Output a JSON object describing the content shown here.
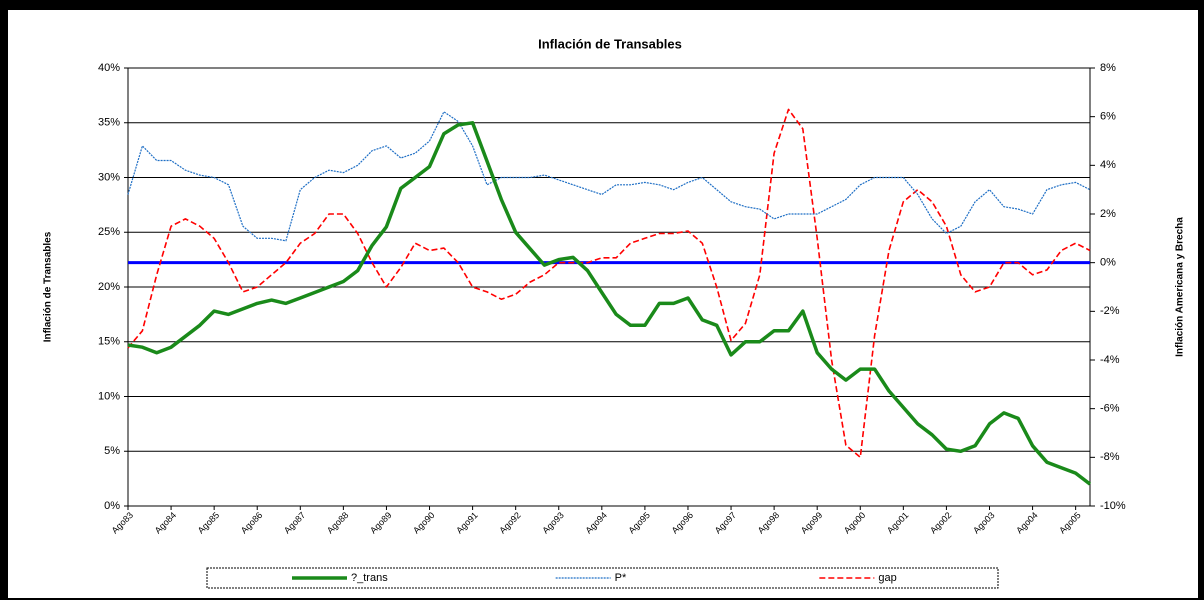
{
  "chart_data": {
    "type": "line",
    "title": "Inflación de Transables",
    "ylabel": "Inflación de Transables",
    "y2label": "Inflación Americana y Brecha",
    "categories": [
      "Ago83",
      null,
      null,
      "Ago84",
      null,
      null,
      "Ago85",
      null,
      null,
      "Ago86",
      null,
      null,
      "Ago87",
      null,
      null,
      "Ago88",
      null,
      null,
      "Ago89",
      null,
      null,
      "Ago90",
      null,
      null,
      "Ago91",
      null,
      null,
      "Ago92",
      null,
      null,
      "Ago93",
      null,
      null,
      "Ago94",
      null,
      null,
      "Ago95",
      null,
      null,
      "Ago96",
      null,
      null,
      "Ago97",
      null,
      null,
      "Ago98",
      null,
      null,
      "Ago99",
      null,
      null,
      "Ago00",
      null,
      null,
      "Ago01",
      null,
      null,
      "Ago02",
      null,
      null,
      "Ago03",
      null,
      null,
      "Ago04",
      null,
      null,
      "Ago05",
      null
    ],
    "series": [
      {
        "name": "?_trans",
        "color": "#1a8a1a",
        "style": "solid",
        "axis": "y",
        "values": [
          14.7,
          14.5,
          14.0,
          14.5,
          15.5,
          16.5,
          17.8,
          17.5,
          18.0,
          18.5,
          18.8,
          18.5,
          19.0,
          19.5,
          20.0,
          20.5,
          21.5,
          23.8,
          25.5,
          29.0,
          30.0,
          31.0,
          34.0,
          34.8,
          35.0,
          31.5,
          28.0,
          25.0,
          23.5,
          22.0,
          22.5,
          22.7,
          21.5,
          19.5,
          17.5,
          16.5,
          16.5,
          18.5,
          18.5,
          19.0,
          17.0,
          16.5,
          13.8,
          15.0,
          15.0,
          16.0,
          16.0,
          17.8,
          14.0,
          12.5,
          11.5,
          12.5,
          12.5,
          10.5,
          9.0,
          7.5,
          6.5,
          5.2,
          5.0,
          5.5,
          7.5,
          8.5,
          8.0,
          5.5,
          4.0,
          3.5,
          3.0,
          2.0
        ]
      },
      {
        "name": "P*",
        "color": "#1f6fc5",
        "style": "dotted",
        "axis": "y2",
        "values": [
          2.8,
          4.8,
          4.2,
          4.2,
          3.8,
          3.6,
          3.5,
          3.2,
          1.5,
          1.0,
          1.0,
          0.9,
          3.0,
          3.5,
          3.8,
          3.7,
          4.0,
          4.6,
          4.8,
          4.3,
          4.5,
          5.0,
          6.2,
          5.8,
          4.8,
          3.2,
          3.5,
          3.5,
          3.5,
          3.6,
          3.4,
          3.2,
          3.0,
          2.8,
          3.2,
          3.2,
          3.3,
          3.2,
          3.0,
          3.3,
          3.5,
          3.0,
          2.5,
          2.3,
          2.2,
          1.8,
          2.0,
          2.0,
          2.0,
          2.3,
          2.6,
          3.2,
          3.5,
          3.5,
          3.5,
          2.8,
          1.8,
          1.2,
          1.5,
          2.5,
          3.0,
          2.3,
          2.2,
          2.0,
          3.0,
          3.2,
          3.3,
          3.0
        ]
      },
      {
        "name": "gap",
        "color": "#ff0000",
        "style": "dashed",
        "axis": "y2",
        "values": [
          -3.5,
          -2.8,
          -0.5,
          1.5,
          1.8,
          1.5,
          1.0,
          0.0,
          -1.2,
          -1.0,
          -0.5,
          0.0,
          0.8,
          1.2,
          2.0,
          2.0,
          1.2,
          0.0,
          -1.0,
          -0.2,
          0.8,
          0.5,
          0.6,
          0.0,
          -1.0,
          -1.2,
          -1.5,
          -1.3,
          -0.8,
          -0.5,
          0.0,
          0.0,
          0.0,
          0.2,
          0.2,
          0.8,
          1.0,
          1.2,
          1.2,
          1.3,
          0.8,
          -1.0,
          -3.2,
          -2.5,
          -0.5,
          4.5,
          6.3,
          5.5,
          1.0,
          -4.0,
          -7.5,
          -8.0,
          -3.0,
          0.5,
          2.5,
          3.0,
          2.5,
          1.5,
          -0.5,
          -1.2,
          -1.0,
          0.0,
          0.0,
          -0.5,
          -0.3,
          0.5,
          0.8,
          0.5
        ]
      }
    ],
    "hlines": [
      {
        "value": 0,
        "axis": "y2",
        "color": "#0000ff"
      }
    ],
    "ylim": [
      0,
      40
    ],
    "yticks": [
      {
        "value": 0,
        "label": "0%"
      },
      {
        "value": 5,
        "label": "5%"
      },
      {
        "value": 10,
        "label": "10%"
      },
      {
        "value": 15,
        "label": "15%"
      },
      {
        "value": 20,
        "label": "20%"
      },
      {
        "value": 25,
        "label": "25%"
      },
      {
        "value": 30,
        "label": "30%"
      },
      {
        "value": 35,
        "label": "35%"
      },
      {
        "value": 40,
        "label": "40%"
      }
    ],
    "y2lim": [
      -10,
      8
    ],
    "y2ticks": [
      {
        "value": -10,
        "label": "-10%"
      },
      {
        "value": -8,
        "label": "-8%"
      },
      {
        "value": -6,
        "label": "-6%"
      },
      {
        "value": -4,
        "label": "-4%"
      },
      {
        "value": -2,
        "label": "-2%"
      },
      {
        "value": 0,
        "label": "0%"
      },
      {
        "value": 2,
        "label": "2%"
      },
      {
        "value": 4,
        "label": "4%"
      },
      {
        "value": 6,
        "label": "6%"
      },
      {
        "value": 8,
        "label": "8%"
      }
    ],
    "grid": true,
    "legend": "bottom"
  }
}
